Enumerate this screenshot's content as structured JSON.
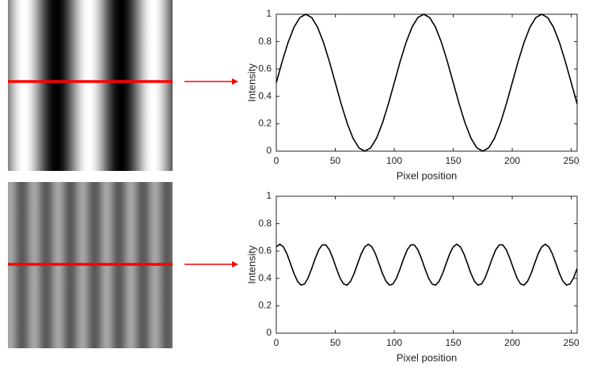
{
  "chart_data": [
    {
      "type": "line",
      "xlabel": "Pixel position",
      "ylabel": "Intensity",
      "color": "#000000",
      "x": [
        0,
        5,
        10,
        15,
        20,
        25,
        30,
        35,
        40,
        45,
        50,
        55,
        60,
        65,
        70,
        75,
        80,
        85,
        90,
        95,
        100,
        105,
        110,
        115,
        120,
        125,
        130,
        135,
        140,
        145,
        150,
        155,
        160,
        165,
        170,
        175,
        180,
        185,
        190,
        195,
        200,
        205,
        210,
        215,
        220,
        225,
        230,
        235,
        240,
        245,
        250,
        255
      ],
      "values": [
        0.5,
        0.655,
        0.794,
        0.905,
        0.976,
        1,
        0.976,
        0.905,
        0.794,
        0.655,
        0.5,
        0.345,
        0.206,
        0.095,
        0.024,
        0,
        0.024,
        0.095,
        0.206,
        0.345,
        0.5,
        0.655,
        0.794,
        0.905,
        0.976,
        1,
        0.976,
        0.905,
        0.794,
        0.655,
        0.5,
        0.345,
        0.206,
        0.095,
        0.024,
        0,
        0.024,
        0.095,
        0.206,
        0.345,
        0.5,
        0.655,
        0.794,
        0.905,
        0.976,
        1,
        0.976,
        0.905,
        0.794,
        0.655,
        0.5,
        0.345
      ],
      "xlim": [
        0,
        255
      ],
      "xticks": [
        0,
        50,
        100,
        150,
        200,
        250
      ],
      "ylim": [
        0,
        1
      ],
      "yticks": [
        0,
        0.2,
        0.4,
        0.6,
        0.8,
        1
      ]
    },
    {
      "type": "line",
      "xlabel": "Pixel position",
      "ylabel": "Intensity",
      "color": "#000000",
      "x": [
        0,
        3,
        6,
        9,
        12,
        15,
        18,
        21,
        24,
        27,
        30,
        33,
        36,
        39,
        42,
        45,
        48,
        51,
        54,
        57,
        60,
        63,
        66,
        69,
        72,
        75,
        78,
        81,
        84,
        87,
        90,
        93,
        96,
        99,
        102,
        105,
        108,
        111,
        114,
        117,
        120,
        123,
        126,
        129,
        132,
        135,
        138,
        141,
        144,
        147,
        150,
        153,
        156,
        159,
        162,
        165,
        168,
        171,
        174,
        177,
        180,
        183,
        186,
        189,
        192,
        195,
        198,
        201,
        204,
        207,
        210,
        213,
        216,
        219,
        222,
        225,
        228,
        231,
        234,
        237,
        240,
        243,
        246,
        249,
        252,
        255
      ],
      "values": [
        0.631,
        0.65,
        0.631,
        0.58,
        0.509,
        0.436,
        0.379,
        0.351,
        0.36,
        0.404,
        0.472,
        0.546,
        0.609,
        0.645,
        0.645,
        0.609,
        0.546,
        0.472,
        0.404,
        0.36,
        0.351,
        0.379,
        0.436,
        0.509,
        0.58,
        0.631,
        0.65,
        0.631,
        0.58,
        0.509,
        0.436,
        0.379,
        0.351,
        0.36,
        0.404,
        0.472,
        0.546,
        0.609,
        0.645,
        0.645,
        0.609,
        0.546,
        0.472,
        0.404,
        0.36,
        0.351,
        0.379,
        0.436,
        0.509,
        0.58,
        0.631,
        0.65,
        0.631,
        0.58,
        0.509,
        0.436,
        0.379,
        0.351,
        0.36,
        0.404,
        0.472,
        0.546,
        0.609,
        0.645,
        0.645,
        0.609,
        0.546,
        0.472,
        0.404,
        0.36,
        0.351,
        0.379,
        0.436,
        0.509,
        0.58,
        0.631,
        0.65,
        0.631,
        0.58,
        0.509,
        0.436,
        0.379,
        0.351,
        0.36,
        0.404,
        0.472
      ],
      "xlim": [
        0,
        255
      ],
      "xticks": [
        0,
        50,
        100,
        150,
        200,
        250
      ],
      "ylim": [
        0,
        1
      ],
      "yticks": [
        0,
        0.2,
        0.4,
        0.6,
        0.8,
        1
      ]
    }
  ]
}
